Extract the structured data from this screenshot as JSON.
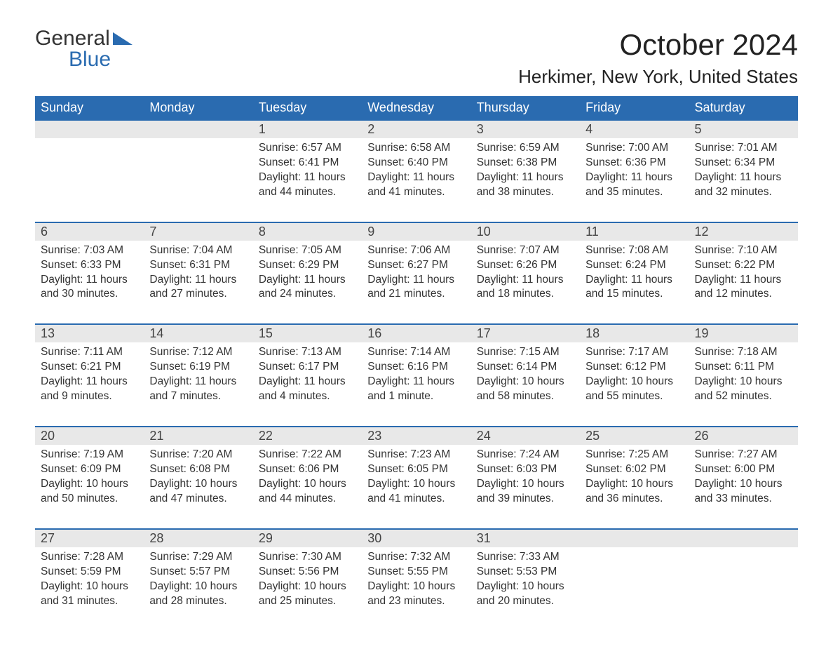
{
  "logo": {
    "text1": "General",
    "text2": "Blue",
    "flag_color": "#2a6bb0"
  },
  "title": "October 2024",
  "location": "Herkimer, New York, United States",
  "colors": {
    "header_bg": "#2a6bb0",
    "header_text": "#ffffff",
    "daynum_bg": "#e8e8e8",
    "border": "#2a6bb0",
    "body_text": "#333333",
    "page_bg": "#ffffff"
  },
  "fonts": {
    "title_size": 42,
    "location_size": 26,
    "header_size": 18,
    "cell_size": 15.5
  },
  "day_headers": [
    "Sunday",
    "Monday",
    "Tuesday",
    "Wednesday",
    "Thursday",
    "Friday",
    "Saturday"
  ],
  "weeks": [
    [
      null,
      null,
      {
        "n": "1",
        "sr": "Sunrise: 6:57 AM",
        "ss": "Sunset: 6:41 PM",
        "d1": "Daylight: 11 hours",
        "d2": "and 44 minutes."
      },
      {
        "n": "2",
        "sr": "Sunrise: 6:58 AM",
        "ss": "Sunset: 6:40 PM",
        "d1": "Daylight: 11 hours",
        "d2": "and 41 minutes."
      },
      {
        "n": "3",
        "sr": "Sunrise: 6:59 AM",
        "ss": "Sunset: 6:38 PM",
        "d1": "Daylight: 11 hours",
        "d2": "and 38 minutes."
      },
      {
        "n": "4",
        "sr": "Sunrise: 7:00 AM",
        "ss": "Sunset: 6:36 PM",
        "d1": "Daylight: 11 hours",
        "d2": "and 35 minutes."
      },
      {
        "n": "5",
        "sr": "Sunrise: 7:01 AM",
        "ss": "Sunset: 6:34 PM",
        "d1": "Daylight: 11 hours",
        "d2": "and 32 minutes."
      }
    ],
    [
      {
        "n": "6",
        "sr": "Sunrise: 7:03 AM",
        "ss": "Sunset: 6:33 PM",
        "d1": "Daylight: 11 hours",
        "d2": "and 30 minutes."
      },
      {
        "n": "7",
        "sr": "Sunrise: 7:04 AM",
        "ss": "Sunset: 6:31 PM",
        "d1": "Daylight: 11 hours",
        "d2": "and 27 minutes."
      },
      {
        "n": "8",
        "sr": "Sunrise: 7:05 AM",
        "ss": "Sunset: 6:29 PM",
        "d1": "Daylight: 11 hours",
        "d2": "and 24 minutes."
      },
      {
        "n": "9",
        "sr": "Sunrise: 7:06 AM",
        "ss": "Sunset: 6:27 PM",
        "d1": "Daylight: 11 hours",
        "d2": "and 21 minutes."
      },
      {
        "n": "10",
        "sr": "Sunrise: 7:07 AM",
        "ss": "Sunset: 6:26 PM",
        "d1": "Daylight: 11 hours",
        "d2": "and 18 minutes."
      },
      {
        "n": "11",
        "sr": "Sunrise: 7:08 AM",
        "ss": "Sunset: 6:24 PM",
        "d1": "Daylight: 11 hours",
        "d2": "and 15 minutes."
      },
      {
        "n": "12",
        "sr": "Sunrise: 7:10 AM",
        "ss": "Sunset: 6:22 PM",
        "d1": "Daylight: 11 hours",
        "d2": "and 12 minutes."
      }
    ],
    [
      {
        "n": "13",
        "sr": "Sunrise: 7:11 AM",
        "ss": "Sunset: 6:21 PM",
        "d1": "Daylight: 11 hours",
        "d2": "and 9 minutes."
      },
      {
        "n": "14",
        "sr": "Sunrise: 7:12 AM",
        "ss": "Sunset: 6:19 PM",
        "d1": "Daylight: 11 hours",
        "d2": "and 7 minutes."
      },
      {
        "n": "15",
        "sr": "Sunrise: 7:13 AM",
        "ss": "Sunset: 6:17 PM",
        "d1": "Daylight: 11 hours",
        "d2": "and 4 minutes."
      },
      {
        "n": "16",
        "sr": "Sunrise: 7:14 AM",
        "ss": "Sunset: 6:16 PM",
        "d1": "Daylight: 11 hours",
        "d2": "and 1 minute."
      },
      {
        "n": "17",
        "sr": "Sunrise: 7:15 AM",
        "ss": "Sunset: 6:14 PM",
        "d1": "Daylight: 10 hours",
        "d2": "and 58 minutes."
      },
      {
        "n": "18",
        "sr": "Sunrise: 7:17 AM",
        "ss": "Sunset: 6:12 PM",
        "d1": "Daylight: 10 hours",
        "d2": "and 55 minutes."
      },
      {
        "n": "19",
        "sr": "Sunrise: 7:18 AM",
        "ss": "Sunset: 6:11 PM",
        "d1": "Daylight: 10 hours",
        "d2": "and 52 minutes."
      }
    ],
    [
      {
        "n": "20",
        "sr": "Sunrise: 7:19 AM",
        "ss": "Sunset: 6:09 PM",
        "d1": "Daylight: 10 hours",
        "d2": "and 50 minutes."
      },
      {
        "n": "21",
        "sr": "Sunrise: 7:20 AM",
        "ss": "Sunset: 6:08 PM",
        "d1": "Daylight: 10 hours",
        "d2": "and 47 minutes."
      },
      {
        "n": "22",
        "sr": "Sunrise: 7:22 AM",
        "ss": "Sunset: 6:06 PM",
        "d1": "Daylight: 10 hours",
        "d2": "and 44 minutes."
      },
      {
        "n": "23",
        "sr": "Sunrise: 7:23 AM",
        "ss": "Sunset: 6:05 PM",
        "d1": "Daylight: 10 hours",
        "d2": "and 41 minutes."
      },
      {
        "n": "24",
        "sr": "Sunrise: 7:24 AM",
        "ss": "Sunset: 6:03 PM",
        "d1": "Daylight: 10 hours",
        "d2": "and 39 minutes."
      },
      {
        "n": "25",
        "sr": "Sunrise: 7:25 AM",
        "ss": "Sunset: 6:02 PM",
        "d1": "Daylight: 10 hours",
        "d2": "and 36 minutes."
      },
      {
        "n": "26",
        "sr": "Sunrise: 7:27 AM",
        "ss": "Sunset: 6:00 PM",
        "d1": "Daylight: 10 hours",
        "d2": "and 33 minutes."
      }
    ],
    [
      {
        "n": "27",
        "sr": "Sunrise: 7:28 AM",
        "ss": "Sunset: 5:59 PM",
        "d1": "Daylight: 10 hours",
        "d2": "and 31 minutes."
      },
      {
        "n": "28",
        "sr": "Sunrise: 7:29 AM",
        "ss": "Sunset: 5:57 PM",
        "d1": "Daylight: 10 hours",
        "d2": "and 28 minutes."
      },
      {
        "n": "29",
        "sr": "Sunrise: 7:30 AM",
        "ss": "Sunset: 5:56 PM",
        "d1": "Daylight: 10 hours",
        "d2": "and 25 minutes."
      },
      {
        "n": "30",
        "sr": "Sunrise: 7:32 AM",
        "ss": "Sunset: 5:55 PM",
        "d1": "Daylight: 10 hours",
        "d2": "and 23 minutes."
      },
      {
        "n": "31",
        "sr": "Sunrise: 7:33 AM",
        "ss": "Sunset: 5:53 PM",
        "d1": "Daylight: 10 hours",
        "d2": "and 20 minutes."
      },
      null,
      null
    ]
  ]
}
